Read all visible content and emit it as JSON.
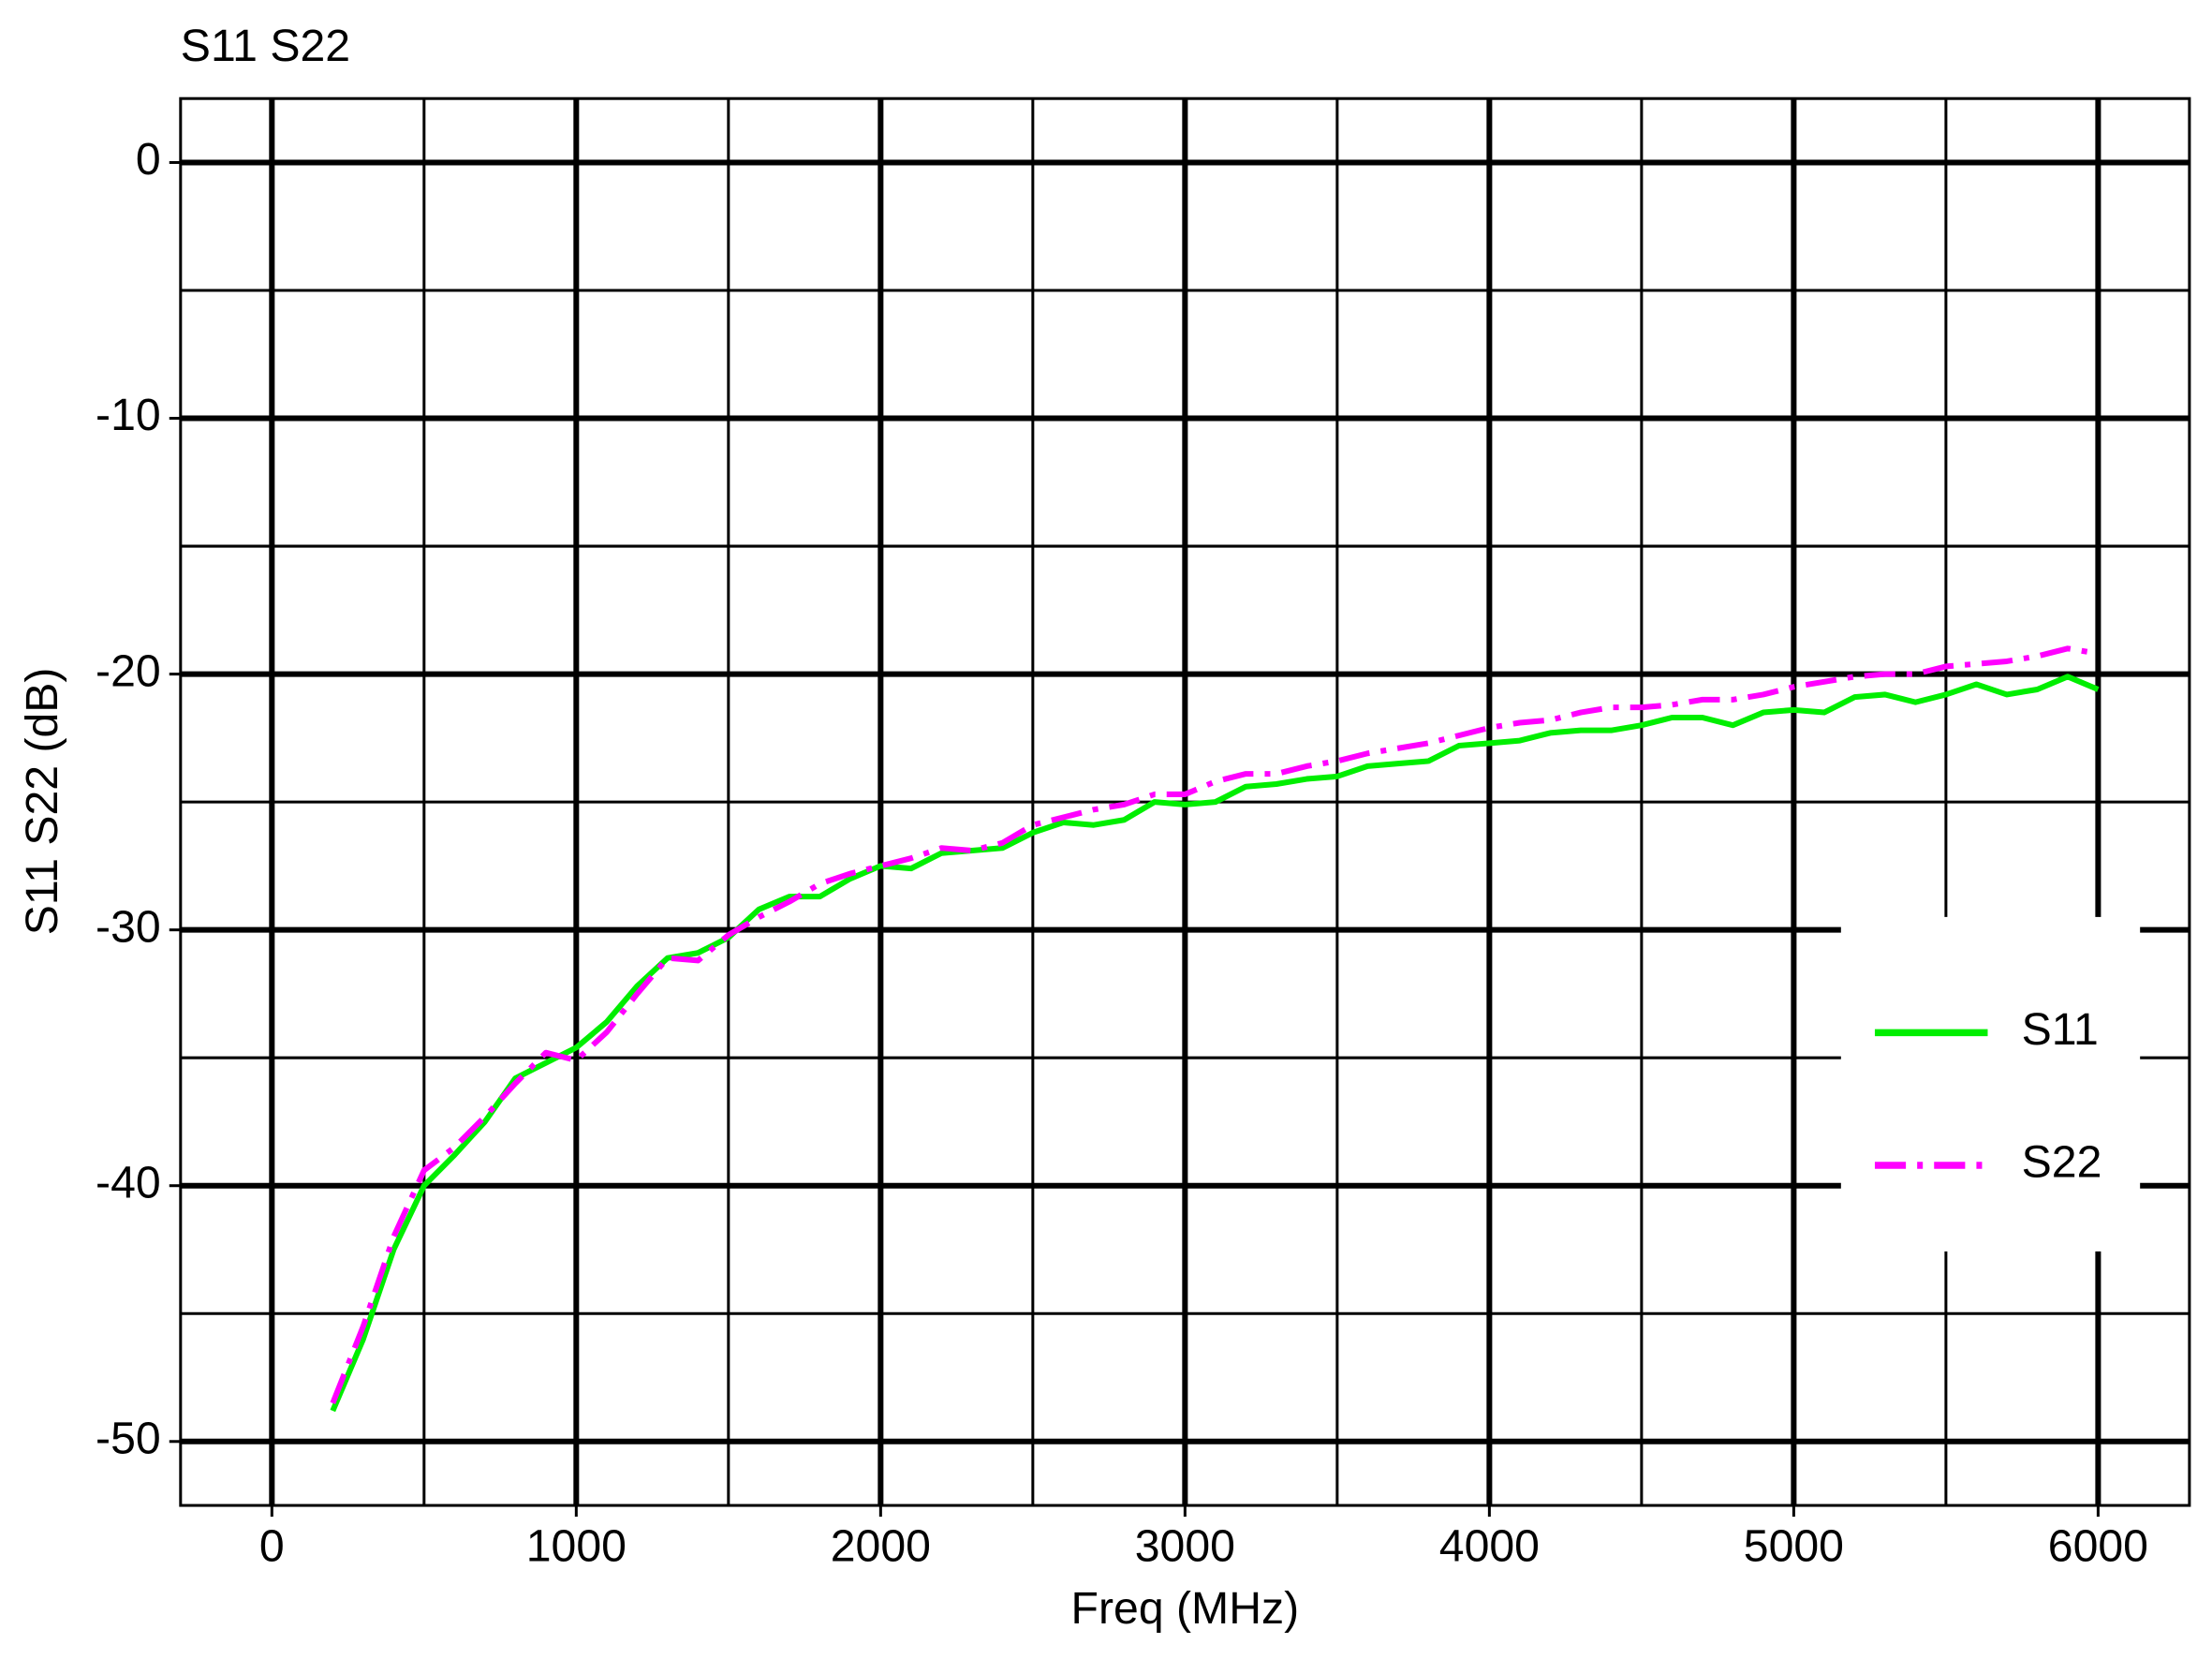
{
  "chart_data": {
    "type": "line",
    "title": "S11 S22",
    "x_label": "Freq (MHz)",
    "y_label": "S11 S22  (dB)",
    "x": [
      200,
      300,
      400,
      500,
      600,
      700,
      800,
      900,
      1000,
      1100,
      1200,
      1300,
      1400,
      1500,
      1600,
      1700,
      1800,
      1900,
      2000,
      2100,
      2200,
      2300,
      2400,
      2500,
      2600,
      2700,
      2800,
      2900,
      3000,
      3100,
      3200,
      3300,
      3400,
      3500,
      3600,
      3700,
      3800,
      3900,
      4000,
      4100,
      4200,
      4300,
      4400,
      4500,
      4600,
      4700,
      4800,
      4900,
      5000,
      5100,
      5200,
      5300,
      5400,
      5500,
      5600,
      5700,
      5800,
      5900,
      6000
    ],
    "series": [
      {
        "name": "S11",
        "color": "#00ee00",
        "dash": "solid",
        "values": [
          -48.8,
          -46,
          -42.5,
          -40,
          -38.8,
          -37.5,
          -35.8,
          -35.2,
          -34.6,
          -33.6,
          -32.2,
          -31.1,
          -30.9,
          -30.3,
          -29.2,
          -28.7,
          -28.7,
          -28,
          -27.5,
          -27.6,
          -27,
          -26.9,
          -26.8,
          -26.2,
          -25.8,
          -25.9,
          -25.7,
          -25,
          -25.1,
          -25,
          -24.4,
          -24.3,
          -24.1,
          -24,
          -23.6,
          -23.5,
          -23.4,
          -22.8,
          -22.7,
          -22.6,
          -22.3,
          -22.2,
          -22.2,
          -22,
          -21.7,
          -21.7,
          -22,
          -21.5,
          -21.4,
          -21.5,
          -20.9,
          -20.8,
          -21.1,
          -20.8,
          -20.4,
          -20.8,
          -20.6,
          -20.1,
          -20.6
        ]
      },
      {
        "name": "S22",
        "color": "#ff00ff",
        "dash": "dashdot",
        "values": [
          -48.5,
          -45.5,
          -42,
          -39.4,
          -38.5,
          -37.3,
          -36,
          -34.8,
          -35.1,
          -34,
          -32.5,
          -31.1,
          -31.2,
          -30.2,
          -29.5,
          -28.9,
          -28.2,
          -27.8,
          -27.5,
          -27.2,
          -26.8,
          -26.9,
          -26.6,
          -25.9,
          -25.6,
          -25.3,
          -25.1,
          -24.7,
          -24.7,
          -24.2,
          -23.9,
          -23.9,
          -23.6,
          -23.4,
          -23.1,
          -22.9,
          -22.7,
          -22.4,
          -22.1,
          -21.9,
          -21.8,
          -21.5,
          -21.3,
          -21.3,
          -21.2,
          -21,
          -21,
          -20.8,
          -20.5,
          -20.3,
          -20.1,
          -20,
          -20,
          -19.7,
          -19.6,
          -19.5,
          -19.3,
          -19,
          -19.2
        ]
      }
    ],
    "xlim": [
      -300,
      6300
    ],
    "ylim": [
      -52.5,
      2.5
    ],
    "xticks": [
      0,
      1000,
      2000,
      3000,
      4000,
      5000,
      6000
    ],
    "yticks": [
      0,
      -10,
      -20,
      -30,
      -40,
      -50
    ],
    "xminor": [
      500,
      1500,
      2500,
      3500,
      4500,
      5500
    ],
    "yminor": [
      -5,
      -15,
      -25,
      -35,
      -45
    ],
    "grid": true,
    "legend": "right"
  }
}
